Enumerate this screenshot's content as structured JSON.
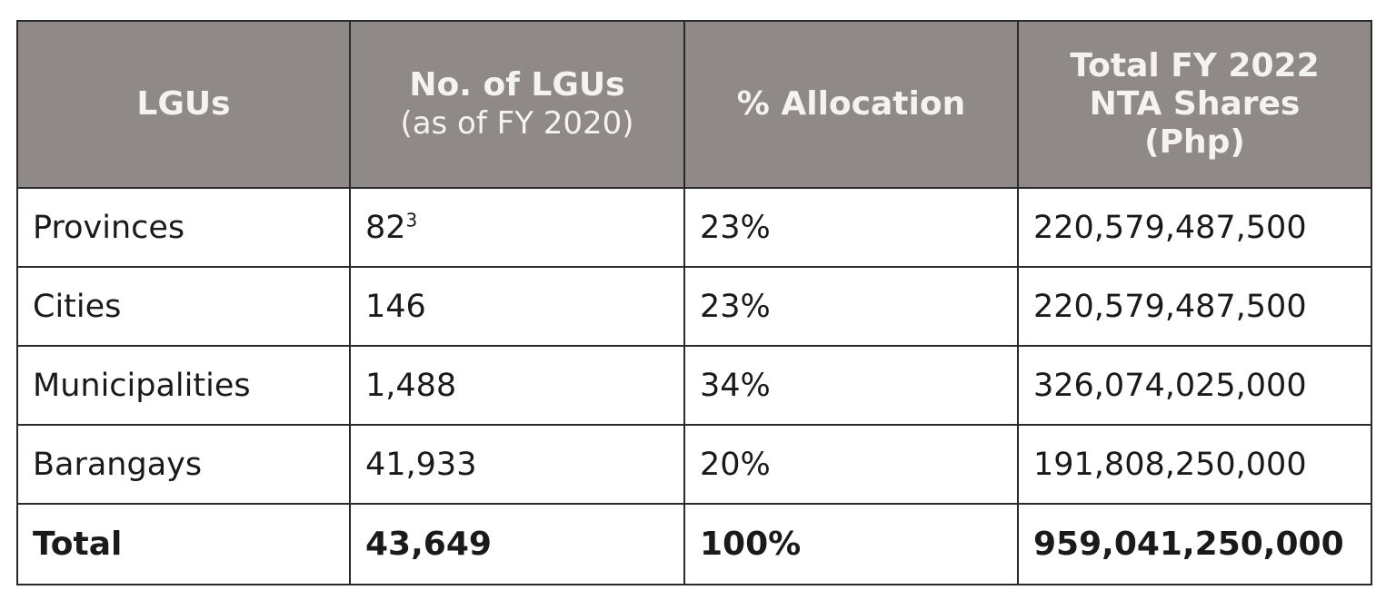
{
  "table": {
    "headers": [
      {
        "line1": "LGUs",
        "line2": ""
      },
      {
        "line1": "No. of LGUs",
        "line2": "(as of FY 2020)"
      },
      {
        "line1": "% Allocation",
        "line2": ""
      },
      {
        "line1": "Total FY 2022 NTA Shares (Php)",
        "line2": ""
      }
    ],
    "rows": [
      {
        "lgu": "Provinces",
        "count": "82",
        "footnote": "3",
        "allocation": "23%",
        "nta": "220,579,487,500"
      },
      {
        "lgu": "Cities",
        "count": "146",
        "footnote": "",
        "allocation": "23%",
        "nta": "220,579,487,500"
      },
      {
        "lgu": "Municipalities",
        "count": "1,488",
        "footnote": "",
        "allocation": "34%",
        "nta": "326,074,025,000"
      },
      {
        "lgu": "Barangays",
        "count": "41,933",
        "footnote": "",
        "allocation": "20%",
        "nta": "191,808,250,000"
      }
    ],
    "total": {
      "lgu": "Total",
      "count": "43,649",
      "allocation": "100%",
      "nta": "959,041,250,000"
    }
  },
  "colors": {
    "header_bg": "#8f8a88",
    "header_text": "#f5f3f2",
    "border": "#2a2a2a"
  }
}
